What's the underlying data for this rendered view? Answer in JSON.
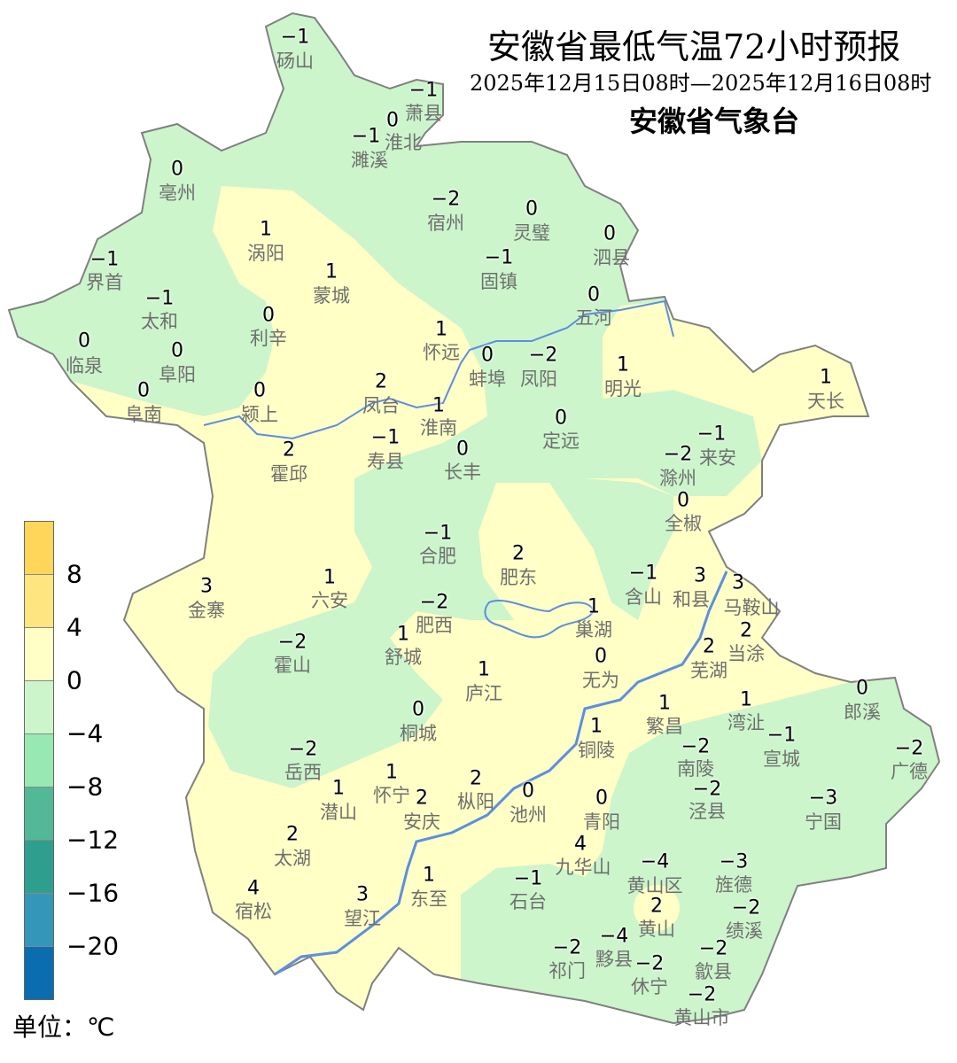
{
  "title": "安徽省最低气温72小时预报",
  "subtitle": "2025年12月15日08时—2025年12月16日08时",
  "issuer": "安徽省气象台",
  "colors": {
    "green": "#ccf5cc",
    "yellow": "#ffffc6",
    "river": "#5b8fe0",
    "border": "#808080"
  },
  "legend": {
    "unit": "单位：℃",
    "colors": [
      "#ffd65a",
      "#ffe580",
      "#ffffc6",
      "#ccf5cc",
      "#98e8b4",
      "#52b897",
      "#2e9f8e",
      "#3496b8",
      "#0a6db0"
    ],
    "labels": [
      "8",
      "4",
      "0",
      "−4",
      "−8",
      "−12",
      "−16",
      "−20"
    ]
  },
  "stations": [
    {
      "name": "砀山",
      "value": "−1"
    },
    {
      "name": "萧县",
      "value": "−1"
    },
    {
      "name": "淮北",
      "value": "0"
    },
    {
      "name": "濉溪",
      "value": "−1"
    },
    {
      "name": "亳州",
      "value": "0"
    },
    {
      "name": "宿州",
      "value": "−2"
    },
    {
      "name": "灵璧",
      "value": "0"
    },
    {
      "name": "涡阳",
      "value": "1"
    },
    {
      "name": "泗县",
      "value": "0"
    },
    {
      "name": "界首",
      "value": "−1"
    },
    {
      "name": "固镇",
      "value": "−1"
    },
    {
      "name": "蒙城",
      "value": "1"
    },
    {
      "name": "五河",
      "value": "0"
    },
    {
      "name": "太和",
      "value": "−1"
    },
    {
      "name": "利辛",
      "value": "0"
    },
    {
      "name": "怀远",
      "value": "1"
    },
    {
      "name": "临泉",
      "value": "0"
    },
    {
      "name": "阜阳",
      "value": "0"
    },
    {
      "name": "蚌埠",
      "value": "0"
    },
    {
      "name": "凤阳",
      "value": "−2"
    },
    {
      "name": "明光",
      "value": "1"
    },
    {
      "name": "天长",
      "value": "1"
    },
    {
      "name": "阜南",
      "value": "0"
    },
    {
      "name": "颍上",
      "value": "0"
    },
    {
      "name": "凤台",
      "value": "2"
    },
    {
      "name": "淮南",
      "value": "1"
    },
    {
      "name": "定远",
      "value": "0"
    },
    {
      "name": "寿县",
      "value": "−1"
    },
    {
      "name": "长丰",
      "value": "0"
    },
    {
      "name": "滁州",
      "value": "−2"
    },
    {
      "name": "来安",
      "value": "−1"
    },
    {
      "name": "霍邱",
      "value": "2"
    },
    {
      "name": "全椒",
      "value": "0"
    },
    {
      "name": "合肥",
      "value": "−1"
    },
    {
      "name": "肥东",
      "value": "2"
    },
    {
      "name": "含山",
      "value": "−1"
    },
    {
      "name": "和县",
      "value": "3"
    },
    {
      "name": "马鞍山",
      "value": "3"
    },
    {
      "name": "当涂",
      "value": "2"
    },
    {
      "name": "六安",
      "value": "1"
    },
    {
      "name": "金寨",
      "value": "3"
    },
    {
      "name": "肥西",
      "value": "−2"
    },
    {
      "name": "巢湖",
      "value": "1"
    },
    {
      "name": "舒城",
      "value": "1"
    },
    {
      "name": "霍山",
      "value": "−2"
    },
    {
      "name": "芜湖",
      "value": "2"
    },
    {
      "name": "无为",
      "value": "0"
    },
    {
      "name": "庐江",
      "value": "1"
    },
    {
      "name": "湾沚",
      "value": "1"
    },
    {
      "name": "郎溪",
      "value": "0"
    },
    {
      "name": "繁昌",
      "value": "1"
    },
    {
      "name": "桐城",
      "value": "0"
    },
    {
      "name": "铜陵",
      "value": "1"
    },
    {
      "name": "宣城",
      "value": "−1"
    },
    {
      "name": "南陵",
      "value": "−2"
    },
    {
      "name": "广德",
      "value": "−2"
    },
    {
      "name": "岳西",
      "value": "−2"
    },
    {
      "name": "怀宁",
      "value": "1"
    },
    {
      "name": "潜山",
      "value": "1"
    },
    {
      "name": "安庆",
      "value": "2"
    },
    {
      "name": "枞阳",
      "value": "2"
    },
    {
      "name": "池州",
      "value": "0"
    },
    {
      "name": "青阳",
      "value": "0"
    },
    {
      "name": "泾县",
      "value": "−2"
    },
    {
      "name": "宁国",
      "value": "−3"
    },
    {
      "name": "九华山",
      "value": "4"
    },
    {
      "name": "太湖",
      "value": "2"
    },
    {
      "name": "东至",
      "value": "1"
    },
    {
      "name": "石台",
      "value": "−1"
    },
    {
      "name": "黄山区",
      "value": "−4"
    },
    {
      "name": "旌德",
      "value": "−3"
    },
    {
      "name": "宿松",
      "value": "4"
    },
    {
      "name": "望江",
      "value": "3"
    },
    {
      "name": "黄山",
      "value": "2"
    },
    {
      "name": "绩溪",
      "value": "−2"
    },
    {
      "name": "祁门",
      "value": "−2"
    },
    {
      "name": "黟县",
      "value": "−4"
    },
    {
      "name": "歙县",
      "value": "−2"
    },
    {
      "name": "休宁",
      "value": "−2"
    },
    {
      "name": "黄山市",
      "value": "−2"
    }
  ]
}
